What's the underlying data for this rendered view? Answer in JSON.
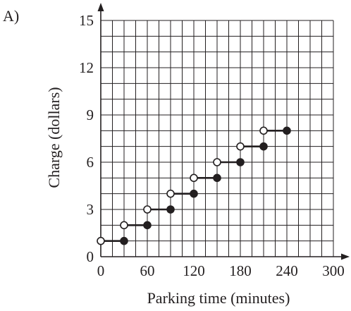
{
  "chart_data": {
    "type": "step",
    "panel_label": "A)",
    "xlabel": "Parking time (minutes)",
    "ylabel": "Charge (dollars)",
    "xlim": [
      0,
      300
    ],
    "ylim": [
      0,
      15
    ],
    "x_ticks": [
      0,
      60,
      120,
      180,
      240,
      300
    ],
    "y_ticks": [
      0,
      3,
      6,
      9,
      12,
      15
    ],
    "grid": true,
    "grid_x_step": 15,
    "grid_y_step": 1,
    "segments": [
      {
        "x_start": 0,
        "x_end": 30,
        "y": 1,
        "start_point": "open",
        "end_point": "closed"
      },
      {
        "x_start": 30,
        "x_end": 60,
        "y": 2,
        "start_point": "open",
        "end_point": "closed"
      },
      {
        "x_start": 60,
        "x_end": 90,
        "y": 3,
        "start_point": "open",
        "end_point": "closed"
      },
      {
        "x_start": 90,
        "x_end": 120,
        "y": 4,
        "start_point": "open",
        "end_point": "closed"
      },
      {
        "x_start": 120,
        "x_end": 150,
        "y": 5,
        "start_point": "open",
        "end_point": "closed"
      },
      {
        "x_start": 150,
        "x_end": 180,
        "y": 6,
        "start_point": "open",
        "end_point": "closed"
      },
      {
        "x_start": 180,
        "x_end": 210,
        "y": 7,
        "start_point": "open",
        "end_point": "closed"
      },
      {
        "x_start": 210,
        "x_end": 240,
        "y": 8,
        "start_point": "open",
        "end_point": "closed"
      }
    ]
  }
}
